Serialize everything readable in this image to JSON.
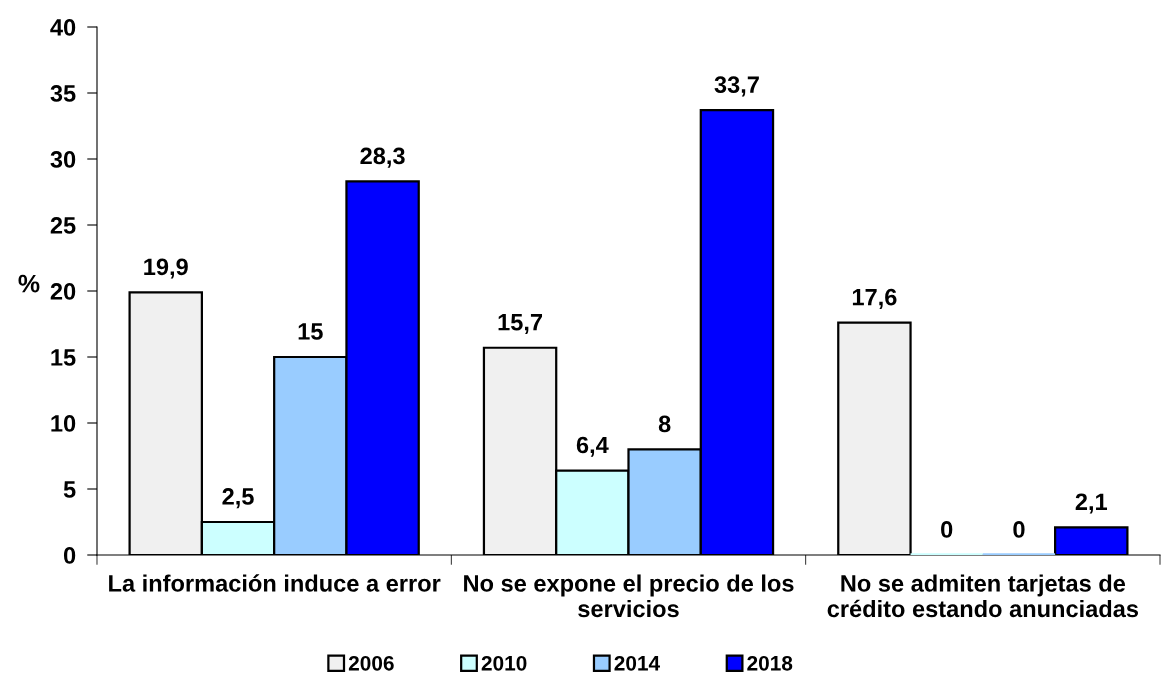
{
  "chart_data": {
    "type": "bar",
    "ylabel": "%",
    "categories": [
      "La información induce a error",
      "No se expone el precio de los servicios",
      "No se admiten tarjetas de crédito estando anunciadas"
    ],
    "series": [
      {
        "name": "2006",
        "color": "#f0f0f0",
        "values": [
          19.9,
          15.7,
          17.6
        ],
        "value_labels": [
          "19,9",
          "15,7",
          "17,6"
        ]
      },
      {
        "name": "2010",
        "color": "#ccffff",
        "values": [
          2.5,
          6.4,
          0
        ],
        "value_labels": [
          "2,5",
          "6,4",
          "0"
        ]
      },
      {
        "name": "2014",
        "color": "#99ccff",
        "values": [
          15,
          8,
          0
        ],
        "value_labels": [
          "15",
          "8",
          "0"
        ]
      },
      {
        "name": "2018",
        "color": "#0000ff",
        "values": [
          28.3,
          33.7,
          2.1
        ],
        "value_labels": [
          "28,3",
          "33,7",
          "2,1"
        ]
      }
    ],
    "ylim": [
      0,
      40
    ],
    "yticks": [
      0,
      5,
      10,
      15,
      20,
      25,
      30,
      35,
      40
    ],
    "legend": "bottom"
  }
}
